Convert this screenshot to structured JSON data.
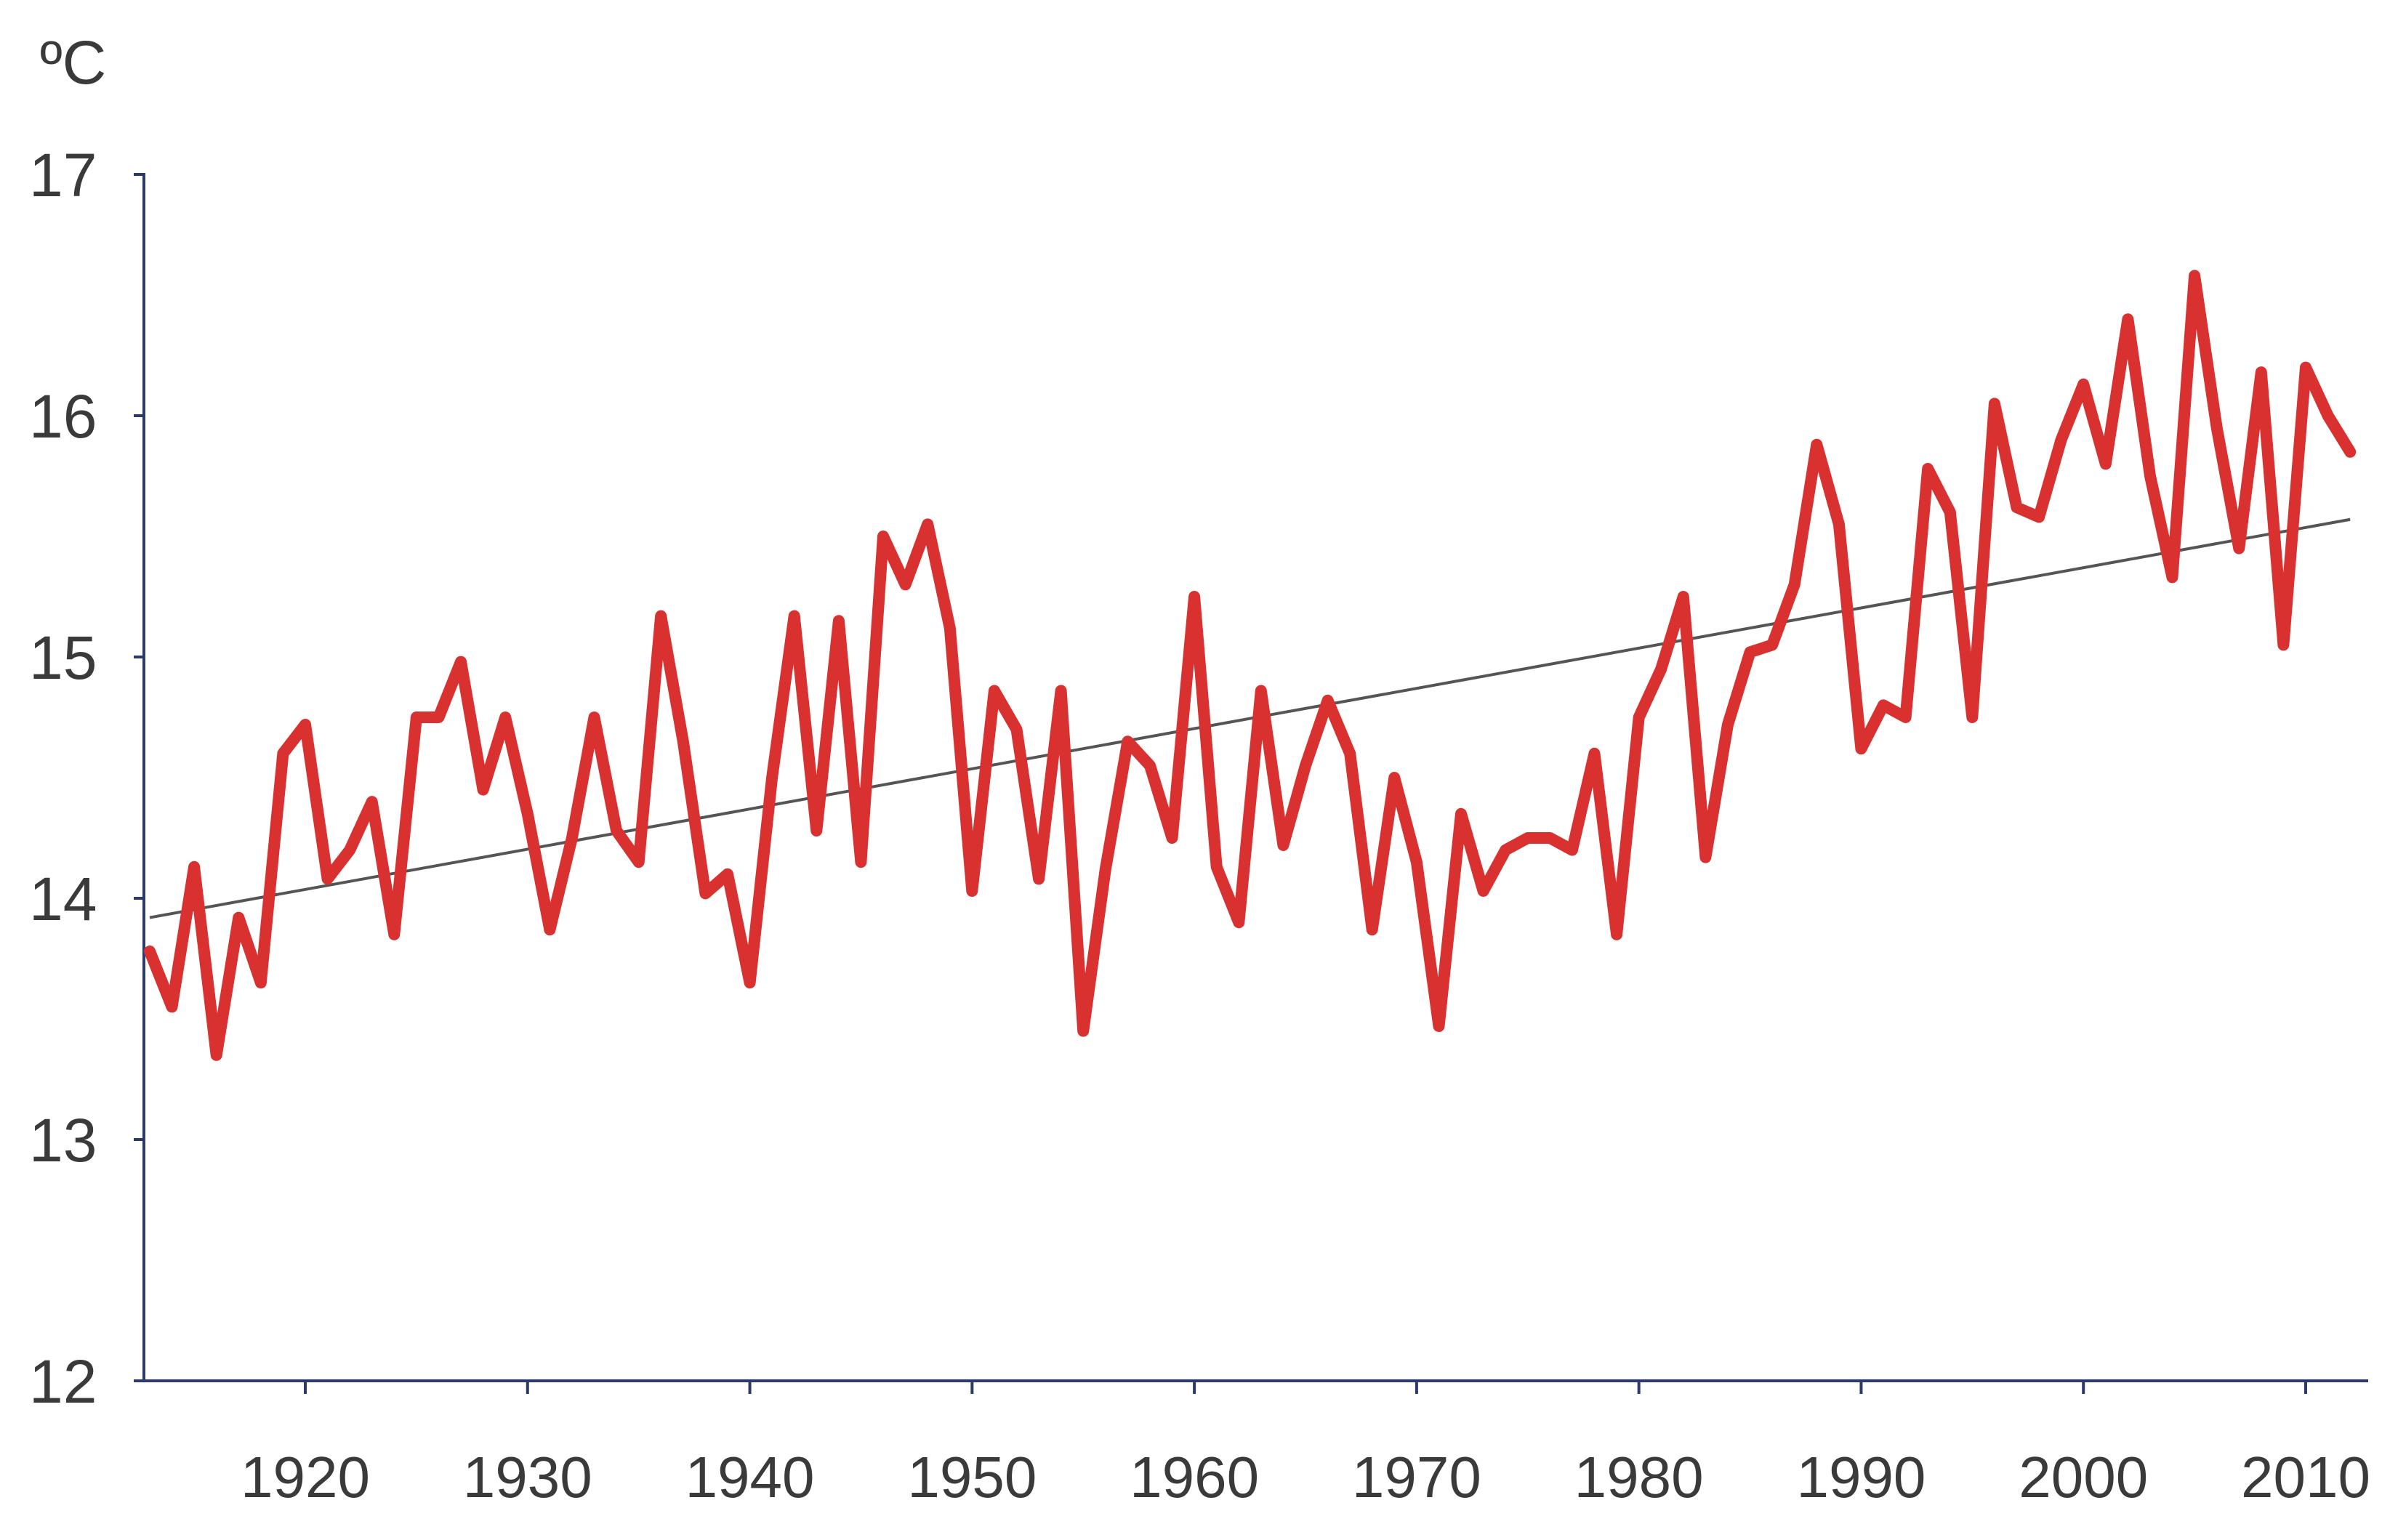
{
  "chart_data": {
    "type": "line",
    "title": "",
    "xlabel": "",
    "ylabel": "ºC",
    "xlim": [
      1913,
      2013
    ],
    "ylim": [
      12,
      17
    ],
    "x_ticks": [
      1920,
      1930,
      1940,
      1950,
      1960,
      1970,
      1980,
      1990,
      2000,
      2010
    ],
    "y_ticks": [
      12,
      13,
      14,
      15,
      16,
      17
    ],
    "grid": false,
    "legend": "none",
    "colors": {
      "series": "#d93030",
      "trend": "#555555",
      "axis": "#2b3a6b",
      "text": "#3a3a3a"
    },
    "x": [
      1913,
      1914,
      1915,
      1916,
      1917,
      1918,
      1919,
      1920,
      1921,
      1922,
      1923,
      1924,
      1925,
      1926,
      1927,
      1928,
      1929,
      1930,
      1931,
      1932,
      1933,
      1934,
      1935,
      1936,
      1937,
      1938,
      1939,
      1940,
      1941,
      1942,
      1943,
      1944,
      1945,
      1946,
      1947,
      1948,
      1949,
      1950,
      1951,
      1952,
      1953,
      1954,
      1955,
      1956,
      1957,
      1958,
      1959,
      1960,
      1961,
      1962,
      1963,
      1964,
      1965,
      1966,
      1967,
      1968,
      1969,
      1970,
      1971,
      1972,
      1973,
      1974,
      1975,
      1976,
      1977,
      1978,
      1979,
      1980,
      1981,
      1982,
      1983,
      1984,
      1985,
      1986,
      1987,
      1988,
      1989,
      1990,
      1991,
      1992,
      1993,
      1994,
      1995,
      1996,
      1997,
      1998,
      1999,
      2000,
      2001,
      2002,
      2003,
      2004,
      2005,
      2006,
      2007,
      2008,
      2009,
      2010,
      2011,
      2012
    ],
    "series": [
      {
        "values": [
          13.78,
          13.55,
          14.13,
          13.35,
          13.92,
          13.65,
          14.6,
          14.72,
          14.08,
          14.2,
          14.4,
          13.85,
          14.75,
          14.75,
          14.98,
          14.45,
          14.75,
          14.35,
          13.87,
          14.25,
          14.75,
          14.28,
          14.15,
          15.17,
          14.65,
          14.02,
          14.1,
          13.65,
          14.5,
          15.17,
          14.28,
          15.15,
          14.15,
          15.5,
          15.3,
          15.55,
          15.12,
          14.03,
          14.86,
          14.7,
          14.08,
          14.86,
          13.45,
          14.12,
          14.65,
          14.55,
          14.25,
          15.25,
          14.13,
          13.9,
          14.86,
          14.22,
          14.55,
          14.82,
          14.6,
          13.87,
          14.5,
          14.15,
          13.47,
          14.35,
          14.03,
          14.2,
          14.25,
          14.25,
          14.2,
          14.6,
          13.85,
          14.75,
          14.95,
          15.25,
          14.17,
          14.72,
          15.02,
          15.05,
          15.3,
          15.88,
          15.55,
          14.62,
          14.8,
          14.75,
          15.78,
          15.6,
          14.75,
          16.05,
          15.62,
          15.58,
          15.9,
          16.13,
          15.8,
          16.4,
          15.75,
          15.33,
          16.58,
          15.95,
          15.45,
          16.18,
          15.05,
          16.2,
          16.0,
          15.85
        ]
      }
    ],
    "trend": {
      "x": [
        1913,
        2012
      ],
      "values": [
        13.92,
        15.57
      ]
    }
  }
}
